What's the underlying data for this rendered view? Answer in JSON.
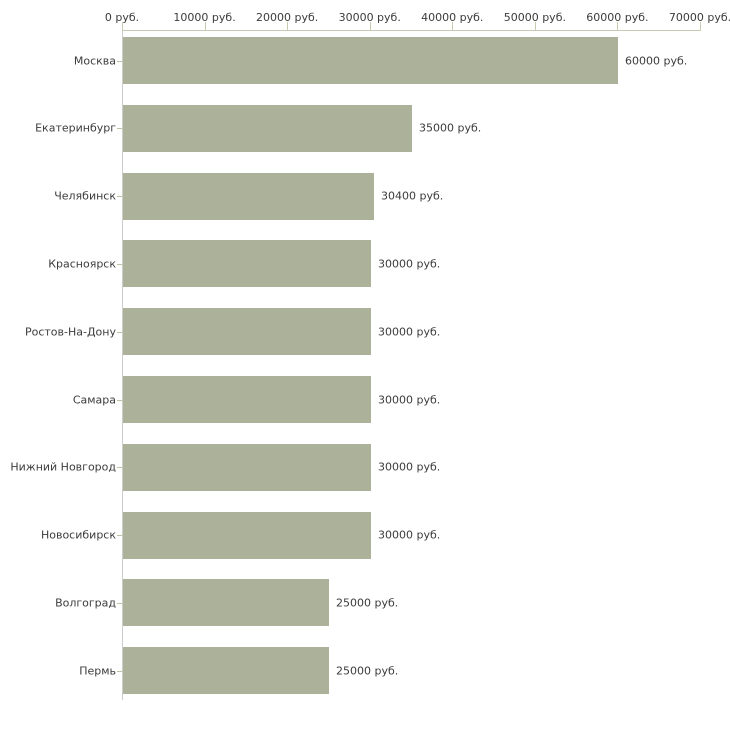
{
  "chart_data": {
    "type": "bar",
    "orientation": "horizontal",
    "title": "",
    "xlabel": "",
    "ylabel": "",
    "xlim": [
      0,
      70000
    ],
    "grid": false,
    "legend": null,
    "unit_suffix": " руб.",
    "x_ticks": [
      0,
      10000,
      20000,
      30000,
      40000,
      50000,
      60000,
      70000
    ],
    "x_tick_labels": [
      "0 руб.",
      "10000 руб.",
      "20000 руб.",
      "30000 руб.",
      "40000 руб.",
      "50000 руб.",
      "60000 руб.",
      "70000 руб."
    ],
    "categories": [
      "Москва",
      "Екатеринбург",
      "Челябинск",
      "Красноярск",
      "Ростов-На-Дону",
      "Самара",
      "Нижний Новгород",
      "Новосибирск",
      "Волгоград",
      "Пермь"
    ],
    "values": [
      60000,
      35000,
      30400,
      30000,
      30000,
      30000,
      30000,
      30000,
      25000,
      25000
    ],
    "value_labels": [
      "60000 руб.",
      "35000 руб.",
      "30400 руб.",
      "30000 руб.",
      "30000 руб.",
      "30000 руб.",
      "30000 руб.",
      "30000 руб.",
      "25000 руб.",
      "25000 руб."
    ],
    "colors": {
      "bar": "#acb199",
      "x_axis": "#c6cbb2",
      "y_axis": "#cccccc",
      "y_tick": "#bcc2a7",
      "text": "#3c3c3c",
      "background": "#ffffff"
    }
  }
}
